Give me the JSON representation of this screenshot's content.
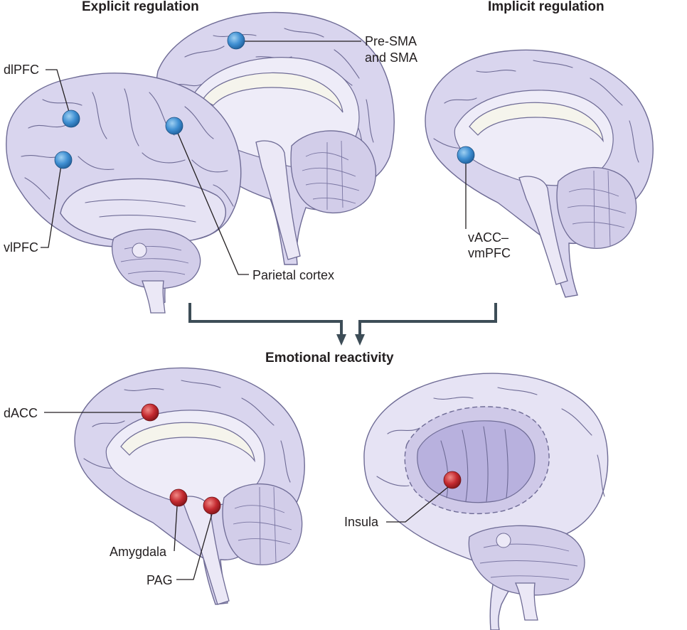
{
  "headings": {
    "explicit": "Explicit regulation",
    "implicit": "Implicit regulation",
    "reactivity": "Emotional reactivity"
  },
  "labels": {
    "pre_sma_line1": "Pre-SMA",
    "pre_sma_line2": "and SMA",
    "dlpfc": "dlPFC",
    "vlpfc": "vlPFC",
    "parietal": "Parietal cortex",
    "vacc_line1": "vACC–",
    "vacc_line2": "vmPFC",
    "dacc": "dACC",
    "amygdala": "Amygdala",
    "pag": "PAG",
    "insula": "Insula"
  },
  "colors": {
    "regulation_marker": "#3f8fd2",
    "reactivity_marker": "#c42a30",
    "brain_fill": "#d9d5ee",
    "brain_outline": "#6e6b95",
    "arrow": "#3d4d57"
  }
}
